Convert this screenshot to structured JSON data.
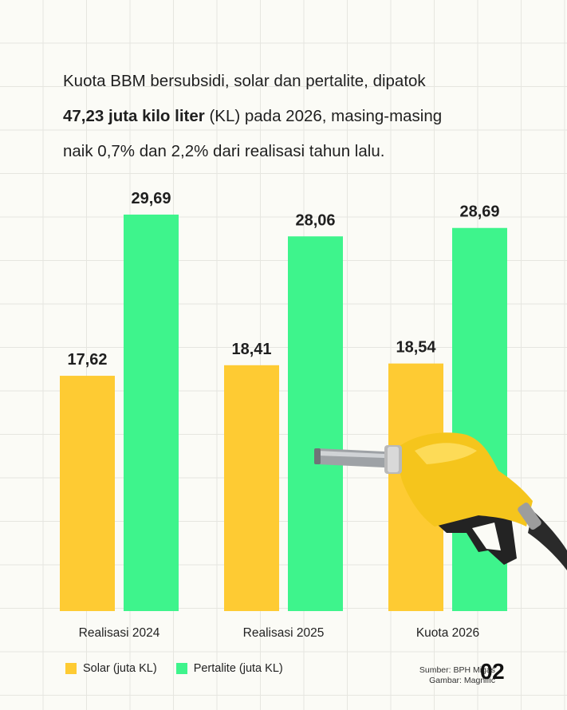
{
  "intro": {
    "line1": "Kuota BBM bersubsidi, solar dan pertalite, dipatok",
    "bold": "47,23 juta kilo liter",
    "line2_rest": " (KL) pada 2026, masing-masing",
    "line3": "naik 0,7% dan 2,2% dari realisasi tahun lalu."
  },
  "chart_data": {
    "type": "bar",
    "categories": [
      "Realisasi 2024",
      "Realisasi 2025",
      "Kuota 2026"
    ],
    "series": [
      {
        "name": "Solar (juta KL)",
        "values": [
          17.62,
          18.41,
          18.54
        ],
        "labels": [
          "17,62",
          "18,41",
          "18,54"
        ],
        "color": "#fecb33"
      },
      {
        "name": "Pertalite (juta KL)",
        "values": [
          29.69,
          28.06,
          28.69
        ],
        "labels": [
          "29,69",
          "28,06",
          "28,69"
        ],
        "color": "#3ef48c"
      }
    ],
    "ylim": [
      0,
      29.69
    ],
    "grid": true,
    "legend": "bottom-left"
  },
  "credits": {
    "source": "Sumber: BPH Migas",
    "image": "Gambar: Magnific"
  },
  "page_number": "02",
  "illustration": {
    "icon": "fuel-nozzle-icon",
    "color": "#f5c51c"
  }
}
